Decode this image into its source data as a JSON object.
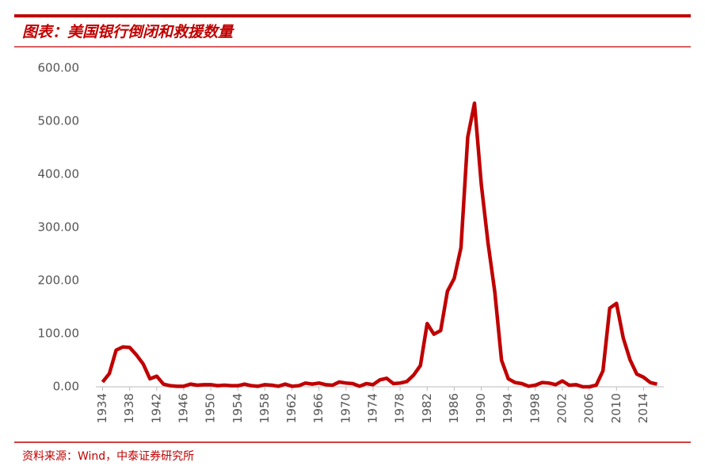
{
  "chart_data": {
    "type": "line",
    "title": "图表：美国银行倒闭和救援数量",
    "source": "资料来源：Wind，中泰证券研究所",
    "x": [
      1934,
      1935,
      1936,
      1937,
      1938,
      1939,
      1940,
      1941,
      1942,
      1943,
      1944,
      1945,
      1946,
      1947,
      1948,
      1949,
      1950,
      1951,
      1952,
      1953,
      1954,
      1955,
      1956,
      1957,
      1958,
      1959,
      1960,
      1961,
      1962,
      1963,
      1964,
      1965,
      1966,
      1967,
      1968,
      1969,
      1970,
      1971,
      1972,
      1973,
      1974,
      1975,
      1976,
      1977,
      1978,
      1979,
      1980,
      1981,
      1982,
      1983,
      1984,
      1985,
      1986,
      1987,
      1988,
      1989,
      1990,
      1991,
      1992,
      1993,
      1994,
      1995,
      1996,
      1997,
      1998,
      1999,
      2000,
      2001,
      2002,
      2003,
      2004,
      2005,
      2006,
      2007,
      2008,
      2009,
      2010,
      2011,
      2012,
      2013,
      2014,
      2015,
      2016
    ],
    "values": [
      9,
      25,
      69,
      75,
      74,
      60,
      43,
      15,
      20,
      5,
      2,
      1,
      1,
      5,
      3,
      4,
      4,
      2,
      3,
      2,
      2,
      5,
      2,
      1,
      4,
      3,
      1,
      5,
      1,
      2,
      7,
      5,
      7,
      4,
      3,
      9,
      7,
      6,
      1,
      6,
      4,
      13,
      16,
      6,
      7,
      10,
      22,
      40,
      119,
      99,
      106,
      180,
      204,
      262,
      470,
      534,
      382,
      271,
      179,
      50,
      15,
      8,
      6,
      1,
      3,
      8,
      7,
      4,
      11,
      3,
      4,
      0,
      0,
      3,
      30,
      148,
      157,
      92,
      51,
      24,
      18,
      8,
      5
    ],
    "color": "#c00000",
    "xlim": [
      1933,
      2017
    ],
    "xticks": [
      1934,
      1938,
      1942,
      1946,
      1950,
      1954,
      1958,
      1962,
      1966,
      1970,
      1974,
      1978,
      1982,
      1986,
      1990,
      1994,
      1998,
      2002,
      2006,
      2010,
      2014
    ],
    "ylim": [
      0,
      600
    ],
    "yticks": [
      {
        "value": 0,
        "label": "0.00"
      },
      {
        "value": 100,
        "label": "100.00"
      },
      {
        "value": 200,
        "label": "200.00"
      },
      {
        "value": 300,
        "label": "300.00"
      },
      {
        "value": 400,
        "label": "400.00"
      },
      {
        "value": 500,
        "label": "500.00"
      },
      {
        "value": 600,
        "label": "600.00"
      }
    ],
    "grid": false
  }
}
